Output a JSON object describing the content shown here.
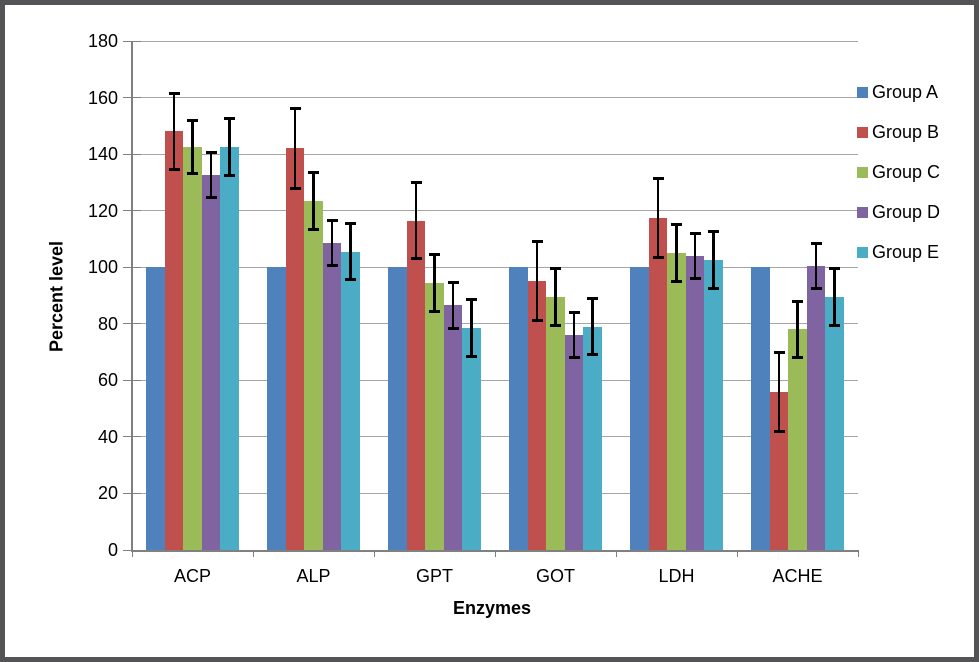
{
  "frame": {
    "border_color": "#545456",
    "background_color": "#ffffff"
  },
  "chart_data": {
    "type": "bar",
    "title": "",
    "xlabel": "Enzymes",
    "ylabel": "Percent level",
    "categories": [
      "ACP",
      "ALP",
      "GPT",
      "GOT",
      "LDH",
      "ACHE"
    ],
    "series": [
      {
        "name": "Group A",
        "color": "#4f81bd",
        "values": [
          100,
          100,
          100,
          100,
          100,
          100
        ],
        "errors": [
          0,
          0,
          0,
          0,
          0,
          0
        ]
      },
      {
        "name": "Group B",
        "color": "#c0504d",
        "values": [
          148,
          142,
          116.5,
          95,
          117.5,
          56
        ],
        "errors": [
          13.5,
          14,
          13.5,
          14,
          14,
          14
        ]
      },
      {
        "name": "Group C",
        "color": "#9bbb59",
        "values": [
          142.5,
          123.5,
          94.5,
          89.5,
          105,
          78
        ],
        "errors": [
          9.5,
          10,
          10,
          10,
          10,
          10
        ]
      },
      {
        "name": "Group D",
        "color": "#8064a2",
        "values": [
          132.5,
          108.5,
          86.5,
          76,
          104,
          100.5
        ],
        "errors": [
          8,
          8,
          8,
          8,
          8,
          8
        ]
      },
      {
        "name": "Group E",
        "color": "#4bacc6",
        "values": [
          142.5,
          105.5,
          78.5,
          79,
          102.5,
          89.5
        ],
        "errors": [
          10,
          10,
          10,
          10,
          10,
          10
        ]
      }
    ],
    "ylim": [
      0,
      180
    ],
    "ytick_step": 20,
    "yticks": [
      0,
      20,
      40,
      60,
      80,
      100,
      120,
      140,
      160,
      180
    ],
    "grid": true,
    "legend_position": "right",
    "error_bars": true,
    "gridline_color": "#a6a6a6",
    "axis_color": "#808080",
    "error_bar_color": "#000000"
  }
}
